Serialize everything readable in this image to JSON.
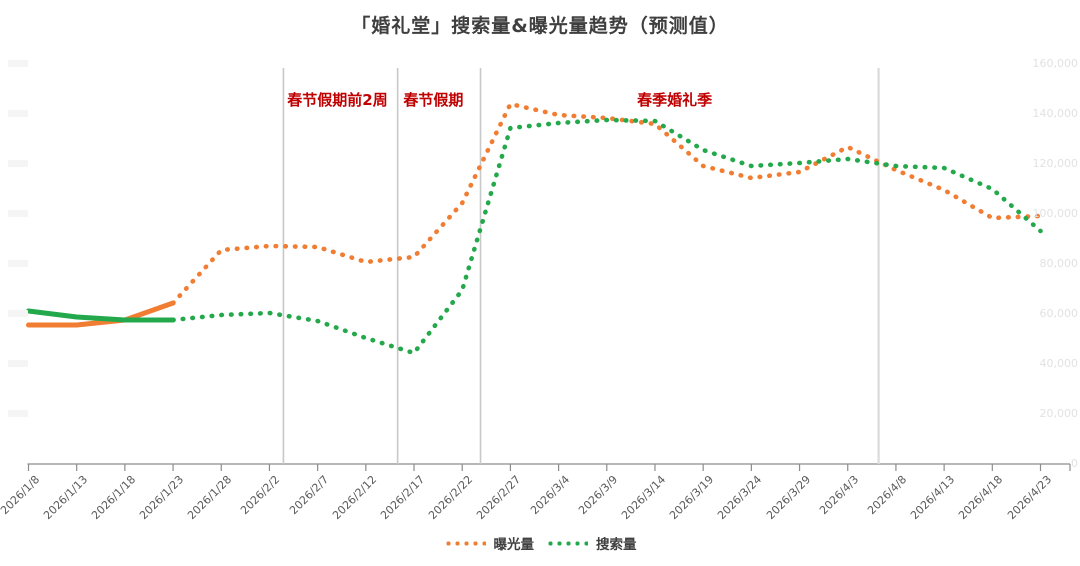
{
  "title": "「婚礼堂」搜索量&曝光量趋势（预测值）",
  "legend": {
    "items": [
      {
        "label": "曝光量",
        "color": "#F07D32"
      },
      {
        "label": "搜索量",
        "color": "#23A94B"
      }
    ]
  },
  "annotations": {
    "pre_holiday": "春节假期前2周",
    "holiday": "春节假期",
    "wedding_season": "春季婚礼季"
  },
  "chart_data": {
    "type": "line",
    "title": "「婚礼堂」搜索量&曝光量趋势（预测值）",
    "x": [
      "2026/1/8",
      "2026/1/13",
      "2026/1/18",
      "2026/1/23",
      "2026/1/28",
      "2026/2/2",
      "2026/2/7",
      "2026/2/12",
      "2026/2/17",
      "2026/2/22",
      "2026/2/27",
      "2026/3/4",
      "2026/3/9",
      "2026/3/14",
      "2026/3/19",
      "2026/3/24",
      "2026/3/29",
      "2026/4/3",
      "2026/4/8",
      "2026/4/13",
      "2026/4/18",
      "2026/4/23"
    ],
    "series": [
      {
        "name": "曝光量",
        "color": "#F07D32",
        "style": "dotted-forecast-after-solid",
        "solid_until_index": 3,
        "values": [
          55600,
          55600,
          57600,
          64400,
          85600,
          87200,
          86800,
          80800,
          82800,
          104400,
          144000,
          139600,
          138400,
          136000,
          119200,
          114400,
          116800,
          126800,
          117600,
          109600,
          98400,
          99200
        ]
      },
      {
        "name": "搜索量",
        "color": "#23A94B",
        "style": "dotted-forecast-after-solid",
        "solid_until_index": 3,
        "values": [
          61200,
          58800,
          57600,
          57600,
          59600,
          60400,
          57200,
          50400,
          44400,
          69600,
          134400,
          136400,
          137600,
          137200,
          125600,
          119200,
          120400,
          122000,
          119200,
          118400,
          110000,
          93200
        ]
      }
    ],
    "ylim": [
      0,
      160000
    ],
    "grid": false,
    "legend_position": "bottom",
    "y_axis_left_labels_redacted": true,
    "y_ticks_right": [
      {
        "value": 0,
        "label": "0"
      },
      {
        "value": 20000,
        "label": "20,000"
      },
      {
        "value": 40000,
        "label": "40,000"
      },
      {
        "value": 60000,
        "label": "60,000"
      },
      {
        "value": 80000,
        "label": "80,000"
      },
      {
        "value": 100000,
        "label": "100,000"
      },
      {
        "value": 120000,
        "label": "120,000"
      },
      {
        "value": 140000,
        "label": "140,000"
      },
      {
        "value": 160000,
        "label": "160,000"
      }
    ],
    "vlines": [
      {
        "x_index": 5.29,
        "light": false
      },
      {
        "x_index": 7.66,
        "light": false
      },
      {
        "x_index": 9.38,
        "light": false
      },
      {
        "x_index": 17.64,
        "light": true
      }
    ],
    "text_annotations": [
      {
        "text": "春节假期前2周",
        "x_index": 5.37,
        "color": "#c00000"
      },
      {
        "text": "春节假期",
        "x_index": 7.78,
        "color": "#c00000"
      },
      {
        "text": "春季婚礼季",
        "x_index": 12.63,
        "color": "#c00000"
      }
    ],
    "axis_color": "#8c8c8c"
  }
}
